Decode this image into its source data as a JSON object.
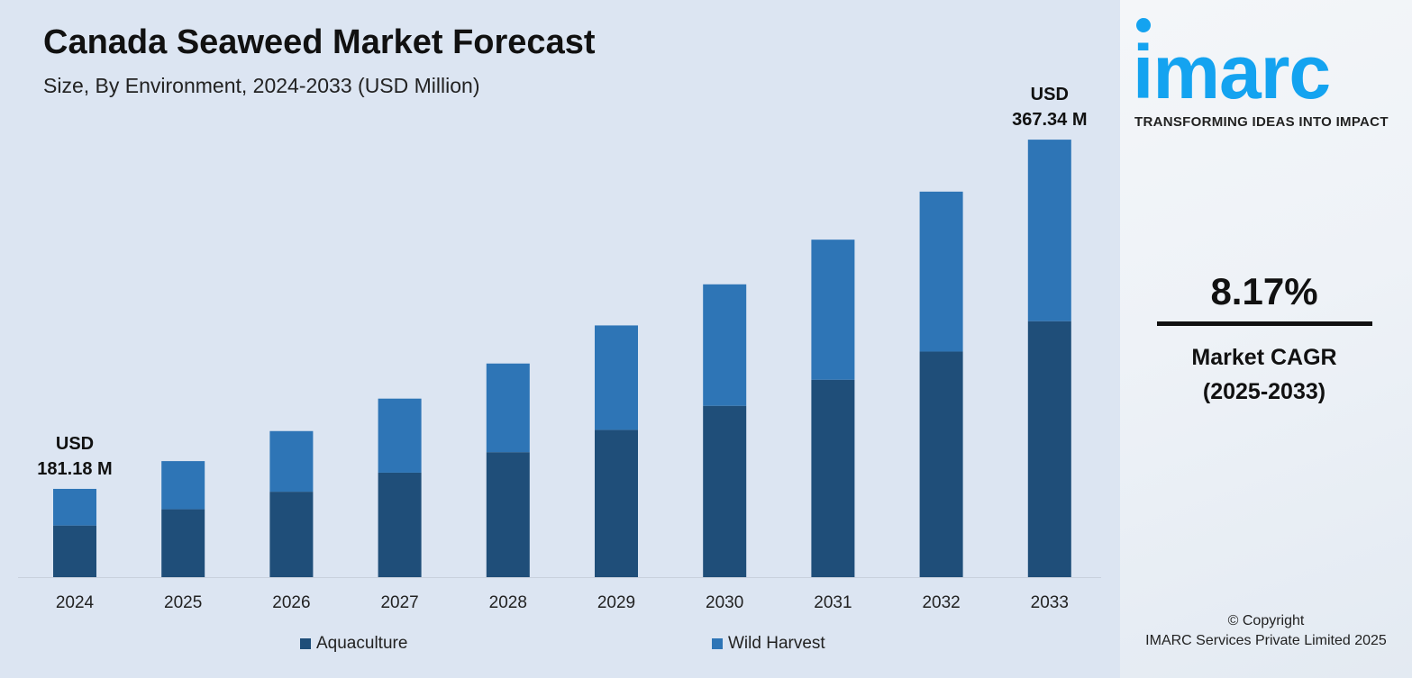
{
  "header": {
    "title": "Canada Seaweed Market Forecast",
    "subtitle": "Size, By Environment, 2024-2033 (USD Million)"
  },
  "chart_data": {
    "type": "bar",
    "stacked": true,
    "title": "Canada Seaweed Market Forecast",
    "subtitle": "Size, By Environment, 2024-2033 (USD Million)",
    "categories": [
      "2024",
      "2025",
      "2026",
      "2027",
      "2028",
      "2029",
      "2030",
      "2031",
      "2032",
      "2033"
    ],
    "series": [
      {
        "name": "Aquaculture",
        "color": "#1f4e79",
        "values": [
          106.0,
          114.7,
          124.0,
          134.2,
          145.1,
          157.0,
          169.8,
          183.7,
          198.7,
          214.9
        ]
      },
      {
        "name": "Wild Harvest",
        "color": "#2e75b6",
        "values": [
          75.2,
          81.3,
          88.0,
          95.1,
          102.9,
          111.3,
          120.4,
          130.3,
          140.9,
          152.4
        ]
      }
    ],
    "totals": [
      181.18,
      195.98,
      211.99,
      229.31,
      248.05,
      268.31,
      290.23,
      313.94,
      339.59,
      367.34
    ],
    "annotations": [
      {
        "category": "2024",
        "line1": "USD",
        "line2": "181.18 M"
      },
      {
        "category": "2033",
        "line1": "USD",
        "line2": "367.34 M"
      }
    ],
    "legend_position": "bottom",
    "grid": false,
    "xlabel": "",
    "ylabel": ""
  },
  "sidebar": {
    "logo_text": "imarc",
    "tagline": "TRANSFORMING IDEAS INTO IMPACT",
    "brand_color": "#14a3f0",
    "cagr_value": "8.17%",
    "cagr_label": "Market CAGR",
    "cagr_period": "(2025-2033)",
    "copyright": "© Copyright",
    "copyright_owner": "IMARC Services Private Limited 2025"
  }
}
